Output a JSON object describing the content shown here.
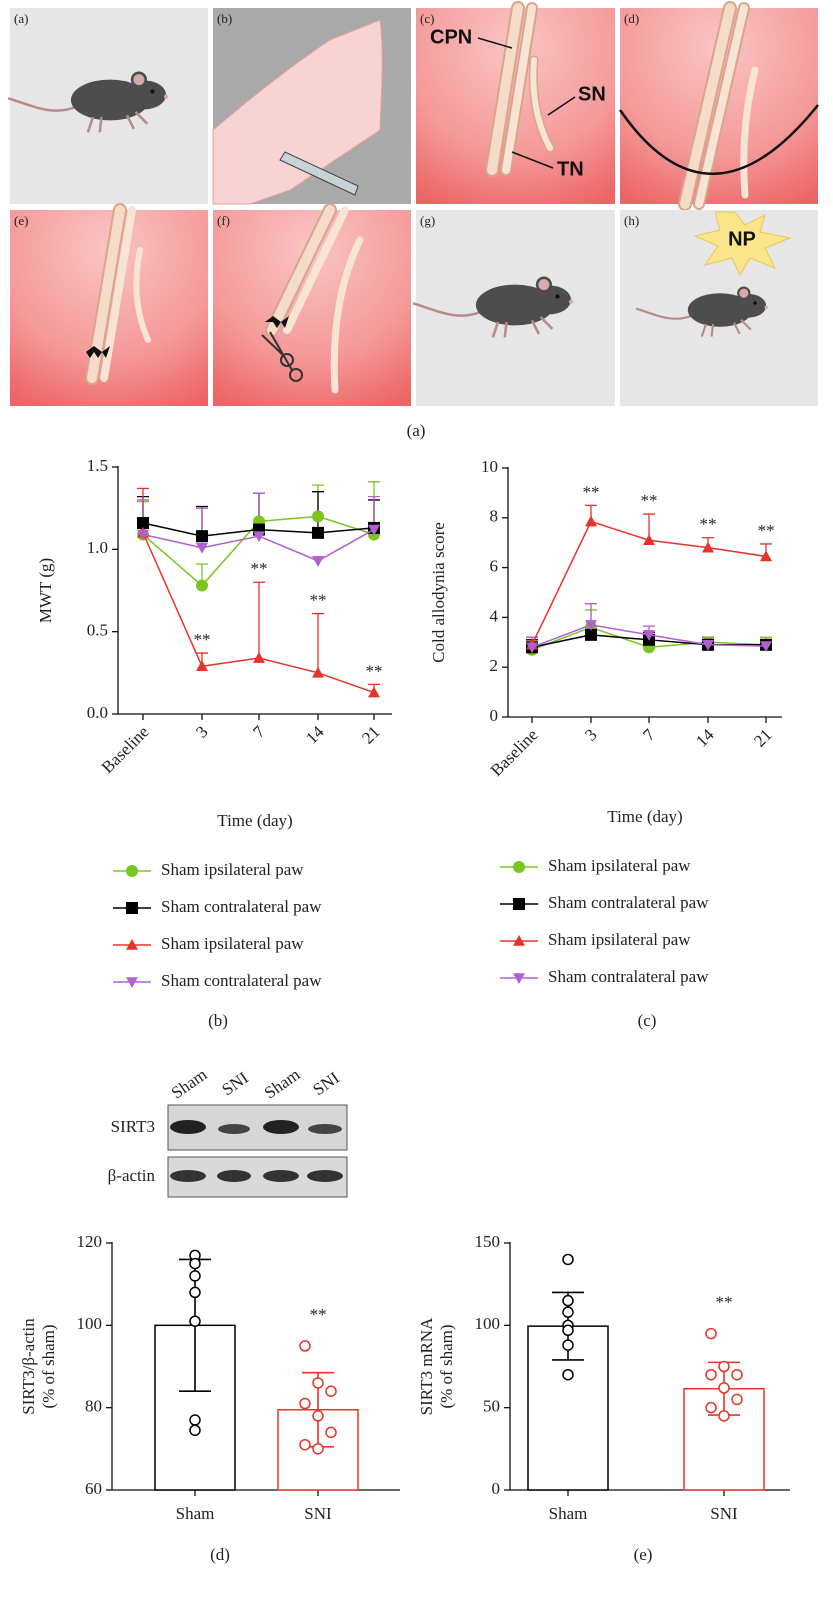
{
  "figure_a": {
    "panel_labels": [
      "(a)",
      "(b)",
      "(c)",
      "(d)",
      "(e)",
      "(f)",
      "(g)",
      "(h)"
    ],
    "nerves": [
      "CPN",
      "SN",
      "TN"
    ],
    "badge": "NP",
    "caption": "(a)"
  },
  "blot": {
    "lanes": [
      "Sham",
      "SNI",
      "Sham",
      "SNI"
    ],
    "rows": [
      "SIRT3",
      "β-actin"
    ]
  },
  "chart_data": [
    {
      "type": "line",
      "caption": "(b)",
      "ylabel": "MWT (g)",
      "xlabel": "Time (day)",
      "categories": [
        "Baseline",
        "3",
        "7",
        "14",
        "21"
      ],
      "ylim": [
        0,
        1.5
      ],
      "yticks": [
        {
          "value": 0,
          "label": "0.0"
        },
        0.5,
        {
          "value": 1,
          "label": "1.0"
        },
        1.5
      ],
      "series": [
        {
          "name": "Sham ipsilateral paw",
          "color": "#7ac520",
          "marker": "circle",
          "values": [
            1.09,
            0.78,
            1.17,
            1.2,
            1.09
          ],
          "errors": [
            0.2,
            0.13,
            0.17,
            0.19,
            0.32
          ]
        },
        {
          "name": "Sham contralateral paw",
          "color": "#000000",
          "marker": "square",
          "values": [
            1.16,
            1.08,
            1.12,
            1.1,
            1.13
          ],
          "errors": [
            0.16,
            0.18,
            0.22,
            0.25,
            0.17
          ]
        },
        {
          "name": "Sham ipsilateral paw",
          "color": "#e8332a",
          "marker": "triangle-up",
          "values": [
            1.1,
            0.29,
            0.34,
            0.25,
            0.13
          ],
          "errors": [
            0.27,
            0.08,
            0.46,
            0.36,
            0.05
          ],
          "significance": [
            null,
            "**",
            "**",
            "**",
            "**"
          ]
        },
        {
          "name": "Sham contralateral paw",
          "color": "#b25fd1",
          "marker": "triangle-down",
          "values": [
            1.09,
            1.01,
            1.08,
            0.93,
            1.12
          ],
          "errors": [
            0.21,
            0.24,
            0.26,
            null,
            0.2
          ]
        }
      ]
    },
    {
      "type": "line",
      "caption": "(c)",
      "ylabel": "Cold allodynia score",
      "xlabel": "Time (day)",
      "categories": [
        "Baseline",
        "3",
        "7",
        "14",
        "21"
      ],
      "ylim": [
        0,
        10
      ],
      "yticks": [
        0,
        2,
        4,
        6,
        8,
        10
      ],
      "series": [
        {
          "name": "Sham ipsilateral paw",
          "color": "#7ac520",
          "marker": "circle",
          "values": [
            2.7,
            3.6,
            2.8,
            3.0,
            2.9
          ],
          "errors": [
            0.4,
            0.7,
            0.3,
            0.2,
            0.3
          ]
        },
        {
          "name": "Sham contralateral paw",
          "color": "#000000",
          "marker": "square",
          "values": [
            2.8,
            3.3,
            3.1,
            2.9,
            2.9
          ],
          "errors": [
            0.3,
            0.3,
            0.3,
            0.3,
            0.2
          ]
        },
        {
          "name": "Sham ipsilateral paw",
          "color": "#e8332a",
          "marker": "triangle-up",
          "values": [
            2.9,
            7.85,
            7.1,
            6.8,
            6.45
          ],
          "errors": [
            0.3,
            0.65,
            1.05,
            0.4,
            0.5
          ],
          "significance": [
            null,
            "**",
            "**",
            "**",
            "**"
          ]
        },
        {
          "name": "Sham contralateral paw",
          "color": "#b25fd1",
          "marker": "triangle-down",
          "values": [
            2.8,
            3.7,
            3.3,
            2.9,
            2.85
          ],
          "errors": [
            0.4,
            0.85,
            0.35,
            0.3,
            0.2
          ]
        }
      ]
    },
    {
      "type": "bar",
      "caption": "(d)",
      "ylabel": [
        "SIRT3/β-actin",
        "(% of sham)"
      ],
      "categories": [
        "Sham",
        "SNI"
      ],
      "colors": [
        "#000000",
        "#e8332a"
      ],
      "values": [
        100,
        79.5
      ],
      "errors": [
        16,
        9
      ],
      "points": [
        [
          117,
          115,
          112,
          108,
          101,
          77,
          74.5
        ],
        [
          95,
          86,
          84,
          81,
          78,
          74,
          71,
          70
        ]
      ],
      "significance": [
        null,
        "**"
      ],
      "ylim": [
        60,
        120
      ],
      "yticks": [
        60,
        80,
        100,
        120
      ]
    },
    {
      "type": "bar",
      "caption": "(e)",
      "ylabel": [
        "SIRT3 mRNA",
        "(% of sham)"
      ],
      "categories": [
        "Sham",
        "SNI"
      ],
      "colors": [
        "#000000",
        "#e8332a"
      ],
      "values": [
        99.5,
        61.5
      ],
      "errors": [
        20.5,
        16
      ],
      "points": [
        [
          140,
          115,
          108,
          100,
          97,
          88,
          70
        ],
        [
          95,
          75,
          70,
          70,
          62,
          55,
          50,
          45
        ]
      ],
      "significance": [
        null,
        "**"
      ],
      "ylim": [
        0,
        150
      ],
      "yticks": [
        0,
        50,
        100,
        150
      ]
    }
  ]
}
